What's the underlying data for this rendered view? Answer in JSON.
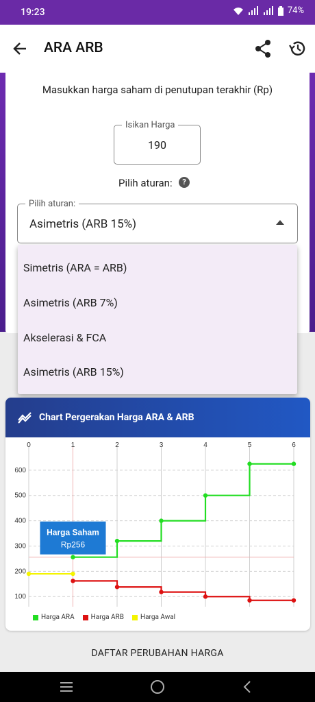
{
  "status": {
    "time": "19:23",
    "battery": "74%"
  },
  "app": {
    "title": "ARA ARB"
  },
  "form": {
    "instruction": "Masukkan harga saham di penutupan terakhir (Rp)",
    "price_label": "Isikan Harga",
    "price_value": "190",
    "rule_label": "Pilih aturan:",
    "select_label": "Pilih aturan:",
    "select_value": "Asimetris (ARB 15%)"
  },
  "dropdown": {
    "options": [
      "Simetris (ARA = ARB)",
      "Asimetris (ARB 7%)",
      "Akselerasi & FCA",
      "Asimetris (ARB 15%)"
    ]
  },
  "chart": {
    "header_title": "Chart Pergerakan Harga ARA & ARB",
    "tooltip_title": "Harga Saham",
    "tooltip_value": "Rp256"
  },
  "chart_data": {
    "type": "line",
    "x_ticks": [
      "0",
      "1",
      "2",
      "3",
      "4",
      "5",
      "6"
    ],
    "y_ticks": [
      "100",
      "200",
      "300",
      "400",
      "500",
      "600"
    ],
    "ylim": [
      60,
      670
    ],
    "xlim": [
      0,
      6
    ],
    "series": [
      {
        "name": "Harga ARA",
        "color": "#22dd22",
        "x": [
          1,
          2,
          3,
          4,
          5,
          6
        ],
        "y": [
          256,
          320,
          400,
          500,
          625,
          625
        ]
      },
      {
        "name": "Harga ARB",
        "color": "#dd1111",
        "x": [
          1,
          2,
          3,
          4,
          5,
          6
        ],
        "y": [
          162,
          138,
          118,
          100,
          85,
          85
        ]
      },
      {
        "name": "Harga Awal",
        "color": "#f4f400",
        "x": [
          0,
          1
        ],
        "y": [
          190,
          190
        ]
      }
    ],
    "crosshair": {
      "x": 1,
      "y": 256
    },
    "legend": [
      "Harga ARA",
      "Harga ARB",
      "Harga Awal"
    ]
  },
  "footer": {
    "list_button": "DAFTAR PERUBAHAN HARGA"
  }
}
